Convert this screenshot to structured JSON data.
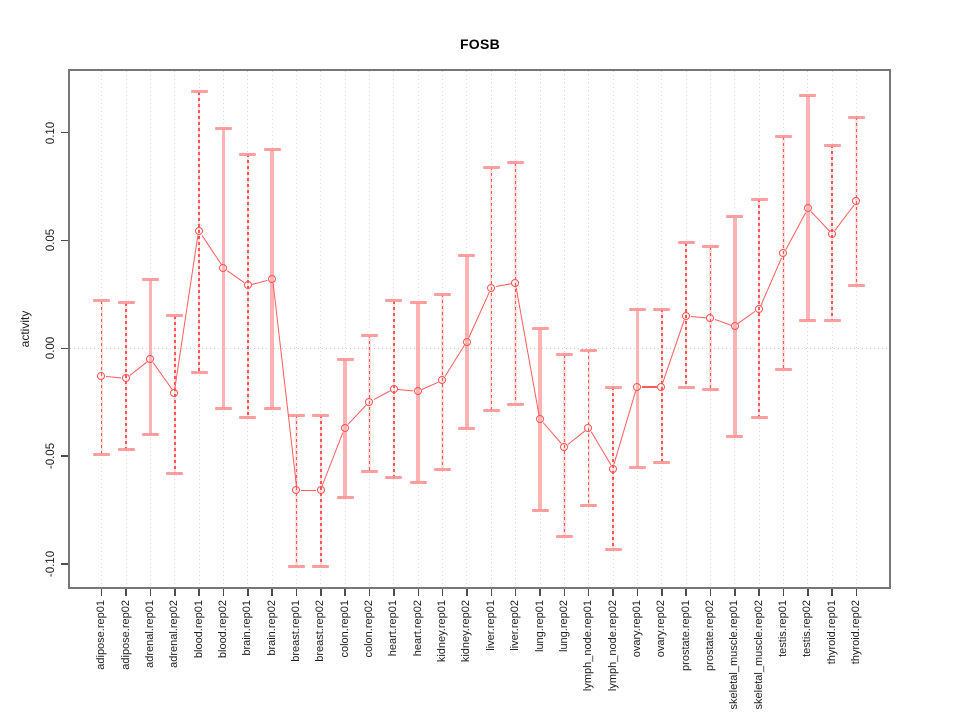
{
  "chart_data": {
    "type": "line",
    "title": "FOSB",
    "xlabel": "",
    "ylabel": "activity",
    "legend": null,
    "marker": "open-circle",
    "grid": {
      "vertical_dotted_per_category": true,
      "horizontal_dotted_zero_line": true
    },
    "ylim": [
      -0.1106,
      0.1285
    ],
    "yticks": [
      -0.1,
      -0.05,
      0.0,
      0.05,
      0.1
    ],
    "ytick_labels": [
      "-0.10",
      "-0.05",
      "0.00",
      "0.05",
      "0.10"
    ],
    "categories": [
      "adipose.rep01",
      "adipose.rep02",
      "adrenal.rep01",
      "adrenal.rep02",
      "blood.rep01",
      "blood.rep02",
      "brain.rep01",
      "brain.rep02",
      "breast.rep01",
      "breast.rep02",
      "colon.rep01",
      "colon.rep02",
      "heart.rep01",
      "heart.rep02",
      "kidney.rep01",
      "kidney.rep02",
      "liver.rep01",
      "liver.rep02",
      "lung.rep01",
      "lung.rep02",
      "lymph_node.rep01",
      "lymph_node.rep02",
      "ovary.rep01",
      "ovary.rep02",
      "prostate.rep01",
      "prostate.rep02",
      "skeletal_muscle.rep01",
      "skeletal_muscle.rep02",
      "testis.rep01",
      "testis.rep02",
      "thyroid.rep01",
      "thyroid.rep02"
    ],
    "series": [
      {
        "name": "FOSB activity",
        "values": [
          -0.013,
          -0.014,
          -0.005,
          -0.021,
          0.054,
          0.037,
          0.029,
          0.032,
          -0.066,
          -0.066,
          -0.037,
          -0.025,
          -0.019,
          -0.02,
          -0.015,
          0.003,
          0.028,
          0.03,
          -0.033,
          -0.046,
          -0.037,
          -0.056,
          -0.018,
          -0.018,
          0.015,
          0.014,
          0.01,
          0.018,
          0.044,
          0.065,
          0.053,
          0.068
        ],
        "err_hi": [
          0.022,
          0.021,
          0.032,
          0.015,
          0.119,
          0.102,
          0.09,
          0.092,
          -0.031,
          -0.031,
          -0.005,
          0.006,
          0.022,
          0.021,
          0.025,
          0.043,
          0.084,
          0.086,
          0.009,
          -0.003,
          -0.001,
          -0.018,
          0.018,
          0.018,
          0.049,
          0.047,
          0.061,
          0.069,
          0.098,
          0.117,
          0.094,
          0.107
        ],
        "err_lo": [
          -0.049,
          -0.047,
          -0.04,
          -0.058,
          -0.011,
          -0.028,
          -0.032,
          -0.028,
          -0.101,
          -0.101,
          -0.069,
          -0.057,
          -0.06,
          -0.062,
          -0.056,
          -0.037,
          -0.029,
          -0.026,
          -0.075,
          -0.087,
          -0.073,
          -0.093,
          -0.055,
          -0.053,
          -0.018,
          -0.019,
          -0.041,
          -0.032,
          -0.01,
          0.013,
          0.013,
          0.029
        ],
        "bar_styles": [
          "dashed",
          "dashed",
          "solid",
          "dashed",
          "dashed",
          "solid",
          "dashed",
          "solid",
          "dashed",
          "dashed",
          "solid",
          "dashed",
          "dashed",
          "solid",
          "dashed",
          "solid",
          "dashed",
          "dashed",
          "solid",
          "dashed",
          "dashed",
          "dashed",
          "solid",
          "dashed",
          "dashed",
          "dashed",
          "solid",
          "dashed",
          "dashed",
          "solid",
          "dashed",
          "dashed"
        ]
      }
    ],
    "colors": {
      "line": "#ff5c5c",
      "marker": "#ff5252",
      "error_bar_dashed": "#ff5555",
      "error_bar_solid": "#ffabab",
      "error_bar_underlay": "#ffc9c9",
      "error_cap": "#ff9494",
      "grid": "#d9d9d9",
      "zero_line": "#cfcfcf",
      "axis": "#4d4d4d",
      "text": "#1c1c1c"
    }
  }
}
